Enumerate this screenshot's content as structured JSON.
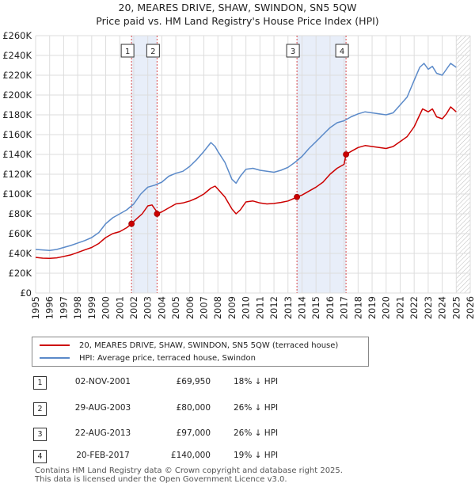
{
  "header": {
    "title_line1": "20, MEARES DRIVE, SHAW, SWINDON, SN5 5QW",
    "title_line2": "Price paid vs. HM Land Registry's House Price Index (HPI)"
  },
  "chart_data": {
    "type": "line",
    "xlim": [
      1995,
      2026
    ],
    "ylim": [
      0,
      260000
    ],
    "x_ticks": [
      1995,
      1996,
      1997,
      1998,
      1999,
      2000,
      2001,
      2002,
      2003,
      2004,
      2005,
      2006,
      2007,
      2008,
      2009,
      2010,
      2011,
      2012,
      2013,
      2014,
      2015,
      2016,
      2017,
      2018,
      2019,
      2020,
      2021,
      2022,
      2023,
      2024,
      2025,
      2026
    ],
    "x_tick_labels": [
      "1995",
      "1996",
      "1997",
      "1998",
      "1999",
      "2000",
      "2001",
      "2002",
      "2003",
      "2004",
      "2005",
      "2006",
      "2007",
      "2008",
      "2009",
      "2010",
      "2011",
      "2012",
      "2013",
      "2014",
      "2015",
      "2016",
      "2017",
      "2018",
      "2019",
      "2020",
      "2021",
      "2022",
      "2023",
      "2024",
      "2025",
      "2026"
    ],
    "y_ticks": [
      0,
      20000,
      40000,
      60000,
      80000,
      100000,
      120000,
      140000,
      160000,
      180000,
      200000,
      220000,
      240000,
      260000
    ],
    "y_tick_labels": [
      "£0",
      "£20K",
      "£40K",
      "£60K",
      "£80K",
      "£100K",
      "£120K",
      "£140K",
      "£160K",
      "£180K",
      "£200K",
      "£220K",
      "£240K",
      "£260K"
    ],
    "grid": true,
    "shaded_ranges": [
      [
        2001.84,
        2003.66
      ],
      [
        2013.64,
        2017.14
      ]
    ],
    "future_hatch_from": 2025.0,
    "series": [
      {
        "name": "20, MEARES DRIVE, SHAW, SWINDON, SN5 5QW (terraced house)",
        "color": "#cc0000",
        "x": [
          1995.0,
          1995.5,
          1996.0,
          1996.5,
          1997.0,
          1997.5,
          1998.0,
          1998.5,
          1999.0,
          1999.5,
          2000.0,
          2000.5,
          2001.0,
          2001.5,
          2001.84,
          2002.2,
          2002.6,
          2003.0,
          2003.3,
          2003.6,
          2003.66,
          2004.0,
          2004.5,
          2005.0,
          2005.5,
          2006.0,
          2006.5,
          2007.0,
          2007.5,
          2007.8,
          2008.0,
          2008.5,
          2009.0,
          2009.3,
          2009.6,
          2010.0,
          2010.5,
          2011.0,
          2011.5,
          2012.0,
          2012.5,
          2013.0,
          2013.5,
          2013.64,
          2014.0,
          2014.5,
          2015.0,
          2015.5,
          2016.0,
          2016.5,
          2017.0,
          2017.14,
          2017.5,
          2018.0,
          2018.5,
          2019.0,
          2019.5,
          2020.0,
          2020.5,
          2021.0,
          2021.5,
          2022.0,
          2022.4,
          2022.6,
          2023.0,
          2023.3,
          2023.6,
          2024.0,
          2024.3,
          2024.6,
          2025.0
        ],
        "y": [
          36000,
          35200,
          35000,
          35500,
          37000,
          38500,
          41000,
          43500,
          46000,
          50000,
          56000,
          60000,
          62000,
          66000,
          69950,
          75000,
          80000,
          88000,
          89000,
          83000,
          80000,
          82000,
          86000,
          90000,
          91000,
          93000,
          96000,
          100000,
          106000,
          108000,
          105000,
          97000,
          85000,
          80000,
          84000,
          92000,
          93000,
          91000,
          90000,
          90500,
          91500,
          93000,
          96000,
          97000,
          99000,
          103000,
          107000,
          112000,
          120000,
          126000,
          130000,
          140000,
          143000,
          147000,
          149000,
          148000,
          147000,
          146000,
          148000,
          153000,
          158000,
          168000,
          180000,
          186000,
          183000,
          186000,
          178000,
          176000,
          181000,
          188000,
          183000
        ]
      },
      {
        "name": "HPI: Average price, terraced house, Swindon",
        "color": "#5b8ac9",
        "x": [
          1995.0,
          1995.5,
          1996.0,
          1996.5,
          1997.0,
          1997.5,
          1998.0,
          1998.5,
          1999.0,
          1999.5,
          2000.0,
          2000.5,
          2001.0,
          2001.5,
          2002.0,
          2002.5,
          2003.0,
          2003.5,
          2004.0,
          2004.5,
          2005.0,
          2005.5,
          2006.0,
          2006.5,
          2007.0,
          2007.5,
          2007.8,
          2008.0,
          2008.5,
          2009.0,
          2009.3,
          2009.6,
          2010.0,
          2010.5,
          2011.0,
          2011.5,
          2012.0,
          2012.5,
          2013.0,
          2013.5,
          2014.0,
          2014.5,
          2015.0,
          2015.5,
          2016.0,
          2016.5,
          2017.0,
          2017.5,
          2018.0,
          2018.5,
          2019.0,
          2019.5,
          2020.0,
          2020.5,
          2021.0,
          2021.5,
          2022.0,
          2022.4,
          2022.7,
          2023.0,
          2023.3,
          2023.6,
          2024.0,
          2024.3,
          2024.6,
          2025.0
        ],
        "y": [
          44000,
          43500,
          43000,
          44000,
          46000,
          48000,
          50500,
          53000,
          56000,
          61000,
          70000,
          76000,
          80000,
          84000,
          90000,
          100000,
          107000,
          109000,
          112000,
          118000,
          121000,
          123000,
          128000,
          135000,
          143000,
          152000,
          148000,
          143000,
          132000,
          115000,
          111000,
          118000,
          125000,
          126000,
          124000,
          123000,
          122000,
          124000,
          127000,
          132000,
          138000,
          146000,
          153000,
          160000,
          167000,
          172000,
          174000,
          178000,
          181000,
          183000,
          182000,
          181000,
          180000,
          182000,
          190000,
          198000,
          215000,
          228000,
          232000,
          226000,
          229000,
          222000,
          220000,
          226000,
          232000,
          228000
        ]
      }
    ],
    "sale_markers": [
      {
        "label": "1",
        "x": 2001.84,
        "y": 69950
      },
      {
        "label": "2",
        "x": 2003.66,
        "y": 80000
      },
      {
        "label": "3",
        "x": 2013.64,
        "y": 97000
      },
      {
        "label": "4",
        "x": 2017.14,
        "y": 140000
      }
    ]
  },
  "legend": {
    "property_label": "20, MEARES DRIVE, SHAW, SWINDON, SN5 5QW (terraced house)",
    "hpi_label": "HPI: Average price, terraced house, Swindon",
    "property_color": "#cc0000",
    "hpi_color": "#5b8ac9"
  },
  "transactions": [
    {
      "num": "1",
      "date": "02-NOV-2001",
      "price": "£69,950",
      "hpi": "18% ↓ HPI"
    },
    {
      "num": "2",
      "date": "29-AUG-2003",
      "price": "£80,000",
      "hpi": "26% ↓ HPI"
    },
    {
      "num": "3",
      "date": "22-AUG-2013",
      "price": "£97,000",
      "hpi": "26% ↓ HPI"
    },
    {
      "num": "4",
      "date": "20-FEB-2017",
      "price": "£140,000",
      "hpi": "19% ↓ HPI"
    }
  ],
  "footer": {
    "line1": "Contains HM Land Registry data © Crown copyright and database right 2025.",
    "line2": "This data is licensed under the Open Government Licence v3.0."
  }
}
